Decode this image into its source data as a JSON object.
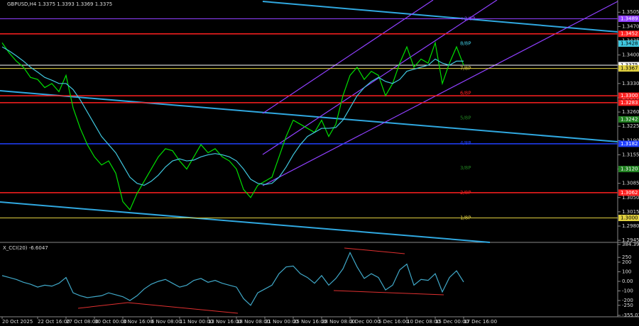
{
  "chart_data": {
    "type": "line",
    "title": "GBPUSD,H4  1.3375 1.3393 1.3369 1.3375",
    "series": [
      {
        "color": "#00e000",
        "values": [
          1.343,
          1.3405,
          1.3385,
          1.337,
          1.3345,
          1.334,
          1.332,
          1.333,
          1.331,
          1.335,
          1.327,
          1.322,
          1.318,
          1.315,
          1.313,
          1.314,
          1.311,
          1.304,
          1.302,
          1.306,
          1.309,
          1.312,
          1.315,
          1.317,
          1.3165,
          1.314,
          1.312,
          1.315,
          1.318,
          1.316,
          1.317,
          1.315,
          1.314,
          1.312,
          1.307,
          1.305,
          1.308,
          1.309,
          1.31,
          1.315,
          1.32,
          1.324,
          1.323,
          1.322,
          1.321,
          1.324,
          1.32,
          1.323,
          1.33,
          1.335,
          1.337,
          1.334,
          1.336,
          1.335,
          1.33,
          1.333,
          1.338,
          1.342,
          1.337,
          1.339,
          1.338,
          1.343,
          1.333,
          1.338,
          1.342,
          1.3375
        ]
      },
      {
        "color": "#40c8e0",
        "values": [
          1.342,
          1.341,
          1.3398,
          1.3385,
          1.337,
          1.3358,
          1.3345,
          1.3338,
          1.333,
          1.333,
          1.3315,
          1.329,
          1.326,
          1.323,
          1.32,
          1.318,
          1.316,
          1.313,
          1.31,
          1.3085,
          1.308,
          1.309,
          1.3105,
          1.3125,
          1.314,
          1.3145,
          1.314,
          1.3142,
          1.315,
          1.3155,
          1.3158,
          1.3155,
          1.315,
          1.314,
          1.312,
          1.3095,
          1.3085,
          1.3082,
          1.3085,
          1.31,
          1.3125,
          1.3155,
          1.318,
          1.32,
          1.321,
          1.322,
          1.322,
          1.3222,
          1.324,
          1.327,
          1.33,
          1.332,
          1.3335,
          1.3345,
          1.3335,
          1.333,
          1.334,
          1.336,
          1.3365,
          1.337,
          1.3375,
          1.339,
          1.338,
          1.3375,
          1.3385,
          1.3385
        ]
      }
    ],
    "ylim": [
      1.294,
      1.3535
    ],
    "yticks": [
      {
        "value": 1.3505,
        "label": "1.3505"
      },
      {
        "value": 1.347,
        "label": "1.3470"
      },
      {
        "value": 1.3435,
        "label": "1.3435"
      },
      {
        "value": 1.34,
        "label": "1.3400"
      },
      {
        "value": 1.3365,
        "label": "1.3365"
      },
      {
        "value": 1.333,
        "label": "1.3330"
      },
      {
        "value": 1.3295,
        "label": "1.3295"
      },
      {
        "value": 1.326,
        "label": "1.3260"
      },
      {
        "value": 1.3225,
        "label": "1.3225"
      },
      {
        "value": 1.319,
        "label": "1.3190"
      },
      {
        "value": 1.3155,
        "label": "1.3155"
      },
      {
        "value": 1.312,
        "label": "1.3120"
      },
      {
        "value": 1.3085,
        "label": "1.3085"
      },
      {
        "value": 1.305,
        "label": "1.3050"
      },
      {
        "value": 1.3015,
        "label": "1.3015"
      },
      {
        "value": 1.298,
        "label": "1.2980"
      },
      {
        "value": 1.2945,
        "label": "1.2945"
      }
    ],
    "levels": [
      {
        "value": 1.3489,
        "label": "1.3489",
        "color": "#9040ff"
      },
      {
        "value": 1.3452,
        "label": "1.3452",
        "color": "#ff2020"
      },
      {
        "value": 1.3428,
        "label": "1.3428",
        "color": "#40c8e0"
      },
      {
        "value": 1.3375,
        "label": "1.3375",
        "color": "#ffffff"
      },
      {
        "value": 1.3367,
        "label": "1.3367",
        "color": "#e0d040"
      },
      {
        "value": 1.33,
        "label": "1.3300",
        "color": "#ff2020"
      },
      {
        "value": 1.3283,
        "label": "1.3283",
        "color": "#ff2020"
      },
      {
        "value": 1.3242,
        "label": "1.3242",
        "color": "#208020"
      },
      {
        "value": 1.3182,
        "label": "1.3182",
        "color": "#2040ff"
      },
      {
        "value": 1.312,
        "label": "1.3120",
        "color": "#208020"
      },
      {
        "value": 1.3062,
        "label": "1.3062",
        "color": "#ff2020"
      },
      {
        "value": 1.3,
        "label": "1.3000",
        "color": "#e0d040"
      }
    ],
    "murray": [
      {
        "value": 1.3489,
        "label": "+2/8P",
        "color": "#9040ff"
      },
      {
        "value": 1.3428,
        "label": "8/8P",
        "color": "#40c8e0"
      },
      {
        "value": 1.3367,
        "label": "7/8P",
        "color": "#e0d040"
      },
      {
        "value": 1.3306,
        "label": "6/8P",
        "color": "#ff2020"
      },
      {
        "value": 1.3245,
        "label": "5/8P",
        "color": "#208020"
      },
      {
        "value": 1.3184,
        "label": "4/8P",
        "color": "#2040ff"
      },
      {
        "value": 1.3123,
        "label": "3/8P",
        "color": "#208020"
      },
      {
        "value": 1.3062,
        "label": "2/8P",
        "color": "#ff2020"
      },
      {
        "value": 1.3,
        "label": "1/8P",
        "color": "#e0d040"
      }
    ],
    "xticks": [
      {
        "value": 0,
        "label": "20 Oct 2025"
      },
      {
        "value": 5,
        "label": "22 Oct 16:00"
      },
      {
        "value": 9,
        "label": "27 Oct 08:00"
      },
      {
        "value": 13,
        "label": "30 Oct 00:00"
      },
      {
        "value": 17,
        "label": "3 Nov 16:00"
      },
      {
        "value": 21,
        "label": "6 Nov 08:00"
      },
      {
        "value": 25,
        "label": "11 Nov 00:00"
      },
      {
        "value": 29,
        "label": "13 Nov 16:00"
      },
      {
        "value": 33,
        "label": "18 Nov 08:00"
      },
      {
        "value": 37,
        "label": "21 Nov 00:00"
      },
      {
        "value": 41,
        "label": "25 Nov 16:00"
      },
      {
        "value": 45,
        "label": "28 Nov 08:00"
      },
      {
        "value": 49,
        "label": "3 Dec 00:00"
      },
      {
        "value": 53,
        "label": "5 Dec 16:00"
      },
      {
        "value": 57,
        "label": "10 Dec 08:00"
      },
      {
        "value": 61,
        "label": "15 Dec 00:00"
      },
      {
        "value": 65,
        "label": "17 Dec 16:00"
      }
    ],
    "indicator": {
      "title": "X_CCI(20) -6.6047",
      "color": "#40a8c8",
      "values": [
        60,
        40,
        20,
        -10,
        -30,
        -60,
        -40,
        -50,
        -20,
        40,
        -120,
        -150,
        -170,
        -160,
        -150,
        -120,
        -140,
        -160,
        -200,
        -150,
        -80,
        -30,
        0,
        20,
        -20,
        -60,
        -40,
        10,
        30,
        -10,
        10,
        -20,
        -40,
        -60,
        -180,
        -250,
        -120,
        -80,
        -40,
        80,
        150,
        160,
        80,
        40,
        -20,
        60,
        -40,
        30,
        130,
        300,
        150,
        30,
        80,
        40,
        -90,
        -40,
        120,
        180,
        -40,
        20,
        10,
        80,
        -110,
        40,
        110,
        -6.6047
      ],
      "ylim": [
        -355.0311,
        384.3971
      ],
      "yticks": [
        384.3971,
        250,
        200,
        100,
        {
          "value": 0,
          "label": "0.00"
        },
        -100,
        -200,
        -250,
        -355.0311
      ]
    }
  }
}
